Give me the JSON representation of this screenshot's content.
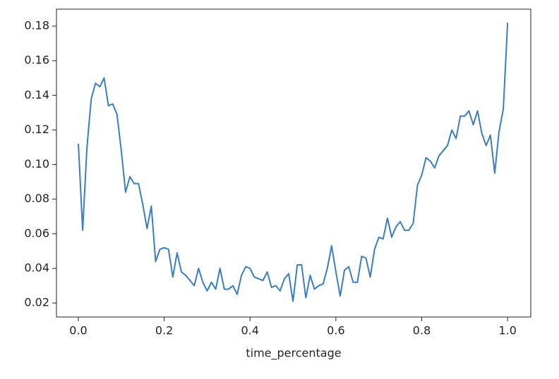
{
  "chart_data": {
    "type": "line",
    "xlabel": "time_percentage",
    "x": [
      0,
      0.01,
      0.02,
      0.03,
      0.04,
      0.05,
      0.06,
      0.07,
      0.08,
      0.09,
      0.1,
      0.11,
      0.12,
      0.13,
      0.14,
      0.15,
      0.16,
      0.17,
      0.18,
      0.19,
      0.2,
      0.21,
      0.22,
      0.23,
      0.24,
      0.25,
      0.26,
      0.27,
      0.28,
      0.29,
      0.3,
      0.31,
      0.32,
      0.33,
      0.34,
      0.35,
      0.36,
      0.37,
      0.38,
      0.39,
      0.4,
      0.41,
      0.42,
      0.43,
      0.44,
      0.45,
      0.46,
      0.47,
      0.48,
      0.49,
      0.5,
      0.51,
      0.52,
      0.53,
      0.54,
      0.55,
      0.56,
      0.57,
      0.58,
      0.59,
      0.6,
      0.61,
      0.62,
      0.63,
      0.64,
      0.65,
      0.66,
      0.67,
      0.68,
      0.69,
      0.7,
      0.71,
      0.72,
      0.73,
      0.74,
      0.75,
      0.76,
      0.77,
      0.78,
      0.79,
      0.8,
      0.81,
      0.82,
      0.83,
      0.84,
      0.85,
      0.86,
      0.87,
      0.88,
      0.89,
      0.9,
      0.91,
      0.92,
      0.93,
      0.94,
      0.95,
      0.96,
      0.97,
      0.98,
      0.99,
      1
    ],
    "values": [
      0.112,
      0.062,
      0.11,
      0.138,
      0.147,
      0.145,
      0.15,
      0.134,
      0.135,
      0.129,
      0.108,
      0.084,
      0.093,
      0.089,
      0.089,
      0.077,
      0.063,
      0.076,
      0.044,
      0.051,
      0.052,
      0.051,
      0.035,
      0.049,
      0.038,
      0.036,
      0.033,
      0.03,
      0.04,
      0.032,
      0.027,
      0.032,
      0.028,
      0.04,
      0.028,
      0.028,
      0.03,
      0.025,
      0.036,
      0.041,
      0.04,
      0.035,
      0.034,
      0.033,
      0.038,
      0.029,
      0.03,
      0.027,
      0.034,
      0.037,
      0.021,
      0.042,
      0.042,
      0.023,
      0.036,
      0.028,
      0.03,
      0.031,
      0.04,
      0.053,
      0.038,
      0.024,
      0.039,
      0.041,
      0.032,
      0.032,
      0.047,
      0.046,
      0.035,
      0.051,
      0.058,
      0.057,
      0.069,
      0.058,
      0.064,
      0.067,
      0.062,
      0.062,
      0.066,
      0.088,
      0.094,
      0.104,
      0.102,
      0.098,
      0.105,
      0.108,
      0.111,
      0.12,
      0.115,
      0.128,
      0.128,
      0.131,
      0.123,
      0.131,
      0.118,
      0.111,
      0.117,
      0.095,
      0.119,
      0.132,
      0.182
    ],
    "color": "#3a7ebf",
    "xlim": [
      -0.051,
      1.054
    ],
    "ylim": [
      0.0119,
      0.1898
    ],
    "xticks": [
      {
        "value": 0,
        "label": "0.0"
      },
      0.2,
      0.4,
      0.6,
      0.8,
      {
        "value": 1,
        "label": "1.0"
      }
    ],
    "yticks": [
      0.02,
      0.04,
      0.06,
      0.08,
      {
        "value": 0.1,
        "label": "0.10"
      },
      0.12,
      0.14,
      0.16,
      0.18
    ]
  }
}
